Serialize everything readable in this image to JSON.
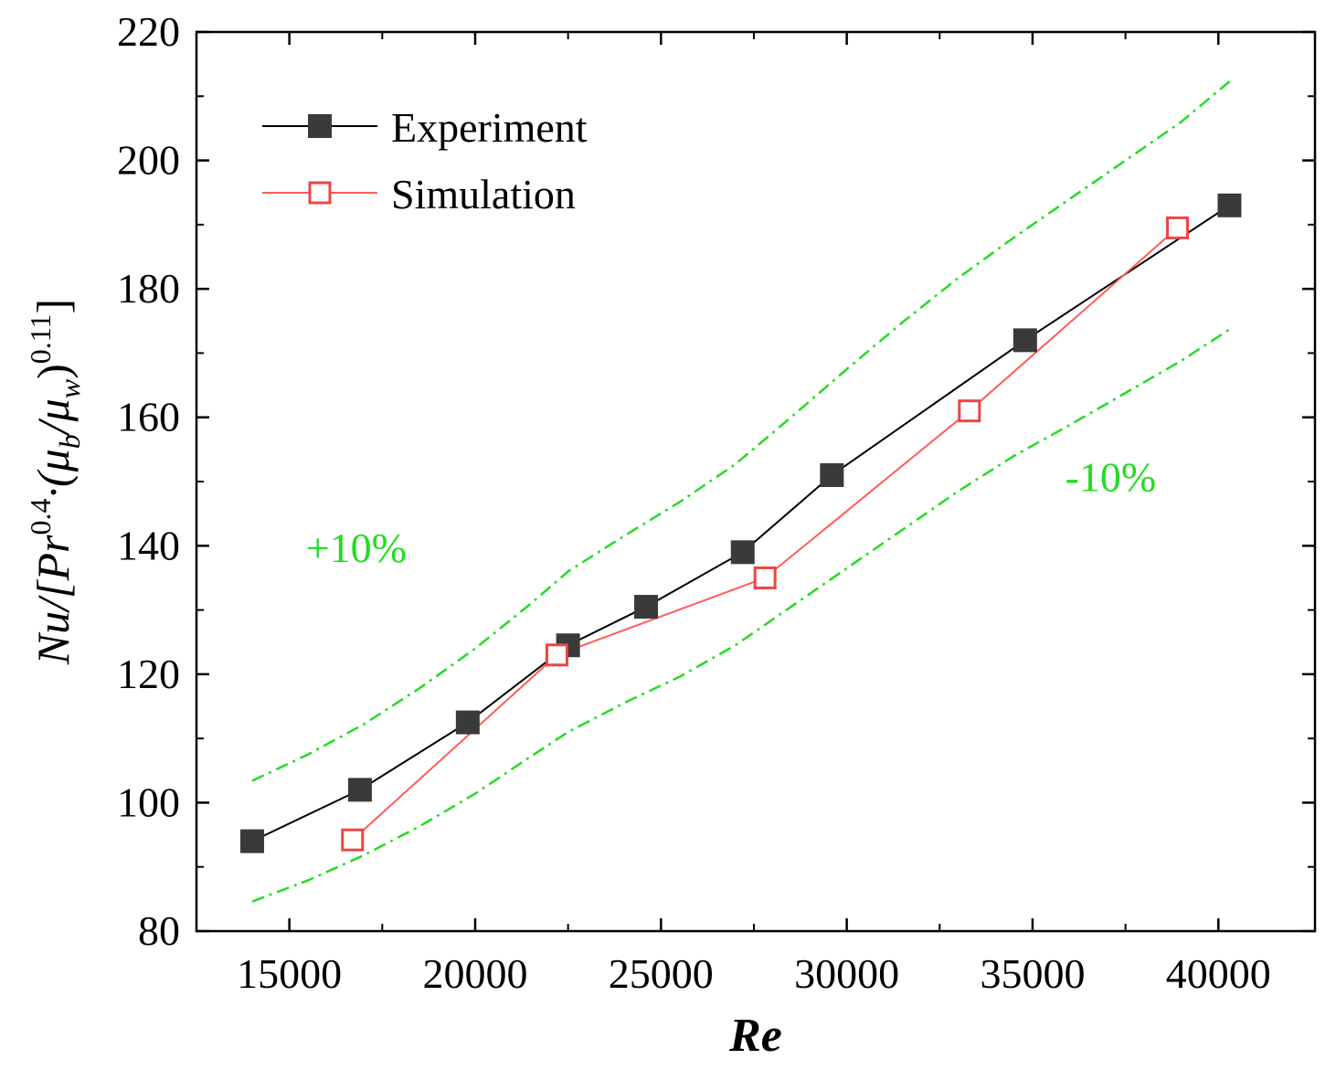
{
  "chart_data": {
    "type": "line",
    "title": "",
    "xlabel": "Re",
    "ylabel": {
      "prefix": "Nu/[Pr",
      "exp1": "0.4",
      "mid": "·(μ",
      "sub_b": "b",
      "slash": "/μ",
      "sub_w": "w",
      "close": ")",
      "exp2": "0.11",
      "end": "]"
    },
    "xlim": [
      12500,
      42600
    ],
    "ylim": [
      80,
      220
    ],
    "xticks": [
      15000,
      20000,
      25000,
      30000,
      35000,
      40000
    ],
    "yticks": [
      80,
      100,
      120,
      140,
      160,
      180,
      200,
      220
    ],
    "series": [
      {
        "name": "Experiment",
        "color": "#000000",
        "marker": "filled-square",
        "marker_color": "#3a3a3a",
        "x": [
          14000,
          16900,
          19800,
          22500,
          24600,
          27200,
          29600,
          34800,
          40300
        ],
        "y": [
          94.0,
          102.0,
          112.5,
          124.5,
          130.5,
          139.0,
          151.0,
          172.0,
          193.0
        ]
      },
      {
        "name": "Simulation",
        "color": "#ff5a5a",
        "marker": "open-square",
        "marker_color": "#ee4444",
        "x": [
          16700,
          22200,
          27800,
          33300,
          38900
        ],
        "y": [
          94.2,
          123.0,
          135.0,
          161.0,
          189.5
        ]
      }
    ],
    "bands": [
      {
        "name": "+10%",
        "color": "#22dd22",
        "x": [
          14000,
          15500,
          17000,
          18500,
          20000,
          21500,
          22500,
          24000,
          25500,
          27000,
          28500,
          30000,
          31500,
          33000,
          34500,
          36000,
          37500,
          39000,
          40300
        ],
        "y": [
          103.4,
          107.5,
          112.2,
          117.8,
          124.0,
          131.0,
          136.0,
          141.5,
          146.8,
          152.7,
          160.0,
          167.5,
          174.8,
          181.7,
          188.0,
          194.0,
          200.0,
          206.0,
          212.3
        ]
      },
      {
        "name": "-10%",
        "color": "#22dd22",
        "x": [
          14000,
          15500,
          17000,
          18500,
          20000,
          21500,
          22500,
          24000,
          25500,
          27000,
          28500,
          30000,
          31500,
          33000,
          34500,
          36000,
          37500,
          39000,
          40300
        ],
        "y": [
          84.6,
          87.9,
          91.8,
          96.3,
          101.4,
          107.2,
          111.0,
          115.5,
          119.6,
          124.5,
          130.5,
          136.5,
          142.5,
          148.5,
          154.0,
          158.8,
          163.8,
          168.8,
          173.7
        ]
      }
    ],
    "annotations": [
      {
        "text": "+10%",
        "x": 16800,
        "y": 137.5
      },
      {
        "text": "-10%",
        "x": 37100,
        "y": 148.5
      }
    ],
    "legend": {
      "placement": "top-left",
      "entries": [
        "Experiment",
        "Simulation"
      ]
    }
  }
}
